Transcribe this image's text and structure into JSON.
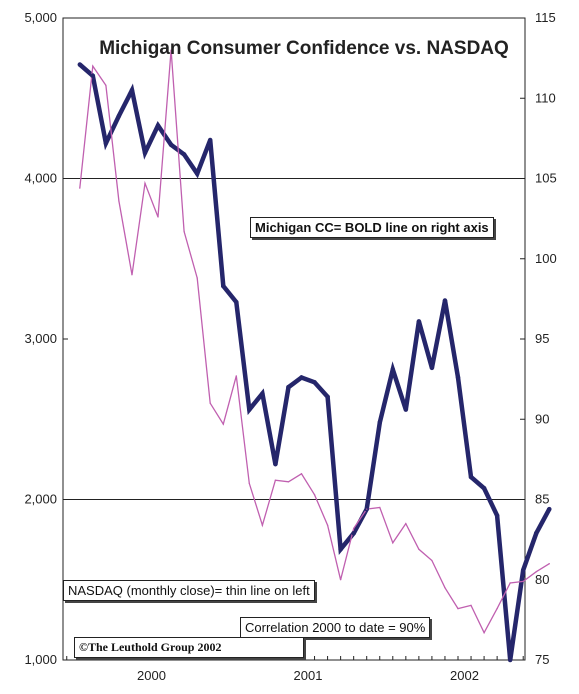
{
  "chart_data": {
    "type": "line",
    "title": "Michigan Consumer Confidence vs. NASDAQ",
    "x": [
      "1999-08",
      "1999-09",
      "1999-10",
      "1999-11",
      "1999-12",
      "2000-01",
      "2000-02",
      "2000-03",
      "2000-04",
      "2000-05",
      "2000-06",
      "2000-07",
      "2000-08",
      "2000-09",
      "2000-10",
      "2000-11",
      "2000-12",
      "2001-01",
      "2001-02",
      "2001-03",
      "2001-04",
      "2001-05",
      "2001-06",
      "2001-07",
      "2001-08",
      "2001-09",
      "2001-10",
      "2001-11",
      "2001-12",
      "2002-01",
      "2002-02",
      "2002-03",
      "2002-04",
      "2002-05",
      "2002-06",
      "2002-07",
      "2002-08"
    ],
    "x_tick_labels": [
      "2000",
      "2001",
      "2002"
    ],
    "series": [
      {
        "name": "Michigan CC",
        "axis": "right",
        "style": "bold",
        "color": "#25266b",
        "values": [
          112.1,
          111.4,
          107.2,
          108.9,
          110.5,
          106.6,
          108.3,
          107.1,
          106.5,
          105.3,
          107.4,
          98.3,
          97.3,
          90.6,
          91.6,
          87.2,
          92.0,
          92.6,
          92.3,
          91.4,
          81.9,
          82.9,
          84.4,
          89.8,
          93.1,
          90.6,
          96.1,
          93.2,
          97.4,
          92.6,
          86.4,
          85.7,
          84.0,
          75.0,
          80.6,
          82.9,
          84.4
        ]
      },
      {
        "name": "NASDAQ (monthly close)",
        "axis": "left",
        "style": "thin",
        "color": "#c060b0",
        "values": [
          3940,
          4700,
          4580,
          3860,
          3400,
          3970,
          3760,
          4800,
          3670,
          3380,
          2600,
          2470,
          2770,
          2100,
          1840,
          2120,
          2110,
          2160,
          2030,
          1840,
          1500,
          1820,
          1940,
          1950,
          1730,
          1850,
          1690,
          1620,
          1450,
          1320,
          1340,
          1170,
          1320,
          1480,
          1490,
          1550,
          1600
        ]
      }
    ],
    "left_axis": {
      "ylim": [
        1000,
        5000
      ],
      "ticks": [
        "1,000",
        "2,000",
        "3,000",
        "4,000",
        "5,000"
      ]
    },
    "right_axis": {
      "ylim": [
        75,
        115
      ],
      "ticks": [
        "75",
        "80",
        "85",
        "90",
        "95",
        "100",
        "105",
        "110",
        "115"
      ]
    },
    "grid": "horizontal lines at 85 and 105 on right axis",
    "annotations": {
      "bold_note": "Michigan CC= BOLD line on right axis",
      "thin_note": "NASDAQ (monthly close)= thin line on left",
      "correlation": "Correlation 2000 to date = 90%",
      "copyright": "©The Leuthold Group 2002"
    }
  }
}
